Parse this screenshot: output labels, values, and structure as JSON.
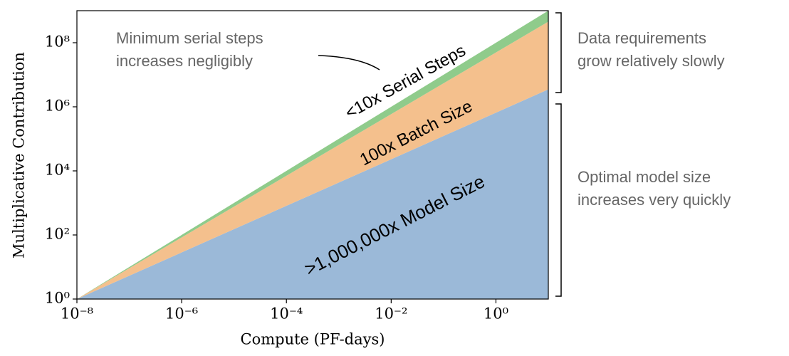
{
  "chart_data": {
    "type": "area",
    "stacking": "multiplicative",
    "log_x": true,
    "log_y": true,
    "x": [
      1e-08,
      10
    ],
    "xlim": [
      1e-08,
      10
    ],
    "ylim": [
      1,
      1000000000.0
    ],
    "xticks": [
      {
        "value": 1e-08,
        "label": "10⁻⁸"
      },
      {
        "value": 1e-06,
        "label": "10⁻⁶"
      },
      {
        "value": 0.0001,
        "label": "10⁻⁴"
      },
      {
        "value": 0.01,
        "label": "10⁻²"
      },
      {
        "value": 1,
        "label": "10⁰"
      }
    ],
    "yticks": [
      {
        "value": 1,
        "label": "10⁰"
      },
      {
        "value": 100,
        "label": "10²"
      },
      {
        "value": 10000,
        "label": "10⁴"
      },
      {
        "value": 1000000,
        "label": "10⁶"
      },
      {
        "value": 100000000,
        "label": "10⁸"
      }
    ],
    "xlabel": "Compute (PF-days)",
    "ylabel": "Multiplicative Contribution",
    "series": [
      {
        "name": ">1,000,000x Model Size",
        "color": "#9bb9d8",
        "values": [
          1,
          3500000
        ]
      },
      {
        "name": "100x Batch Size",
        "color": "#f4c08d",
        "values": [
          1,
          130
        ]
      },
      {
        "name": "<10x Serial Steps",
        "color": "#8fcb8b",
        "values": [
          1,
          2.2
        ]
      }
    ],
    "annotations": [
      {
        "lines": [
          "Minimum serial steps",
          "increases negligibly"
        ]
      },
      {
        "lines": [
          "Data requirements",
          "grow relatively slowly"
        ]
      },
      {
        "lines": [
          "Optimal model size",
          "increases very quickly"
        ]
      }
    ]
  }
}
